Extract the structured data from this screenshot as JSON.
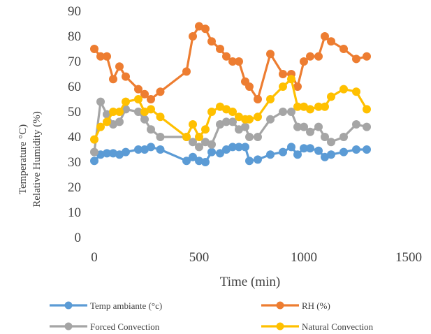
{
  "chart_data": {
    "type": "line",
    "xlabel": "Time (min)",
    "ylabel_lines": [
      "Temperature °C)",
      "Relative Humidity (%)"
    ],
    "xlim": [
      0,
      1500
    ],
    "ylim": [
      0,
      90
    ],
    "x_ticks": [
      0,
      500,
      1000,
      1500
    ],
    "y_ticks": [
      0,
      10,
      20,
      30,
      40,
      50,
      60,
      70,
      80,
      90
    ],
    "grid": false,
    "legend_position": "bottom",
    "series": [
      {
        "name": "Temp ambiante (°c)",
        "color": "#5B9BD5",
        "x": [
          0,
          30,
          60,
          90,
          120,
          150,
          210,
          240,
          270,
          315,
          440,
          470,
          500,
          530,
          560,
          600,
          630,
          660,
          690,
          720,
          740,
          780,
          840,
          900,
          940,
          970,
          1000,
          1030,
          1070,
          1100,
          1130,
          1190,
          1250,
          1300
        ],
        "y": [
          30.5,
          33,
          33.5,
          33.5,
          33,
          34,
          35,
          35,
          36,
          35,
          30.5,
          32,
          30.5,
          30,
          34,
          33.5,
          35,
          36,
          36,
          36,
          30.5,
          31,
          33,
          34,
          36,
          33,
          35.5,
          35.5,
          34.5,
          32,
          33,
          34,
          35,
          35
        ]
      },
      {
        "name": "RH (%)",
        "color": "#ED7D31",
        "x": [
          0,
          30,
          60,
          90,
          120,
          150,
          210,
          240,
          270,
          315,
          440,
          470,
          500,
          530,
          560,
          600,
          630,
          660,
          690,
          720,
          740,
          780,
          840,
          900,
          940,
          970,
          1000,
          1030,
          1070,
          1100,
          1130,
          1190,
          1250,
          1300
        ],
        "y": [
          75,
          72,
          72,
          63,
          68,
          64,
          59,
          57,
          55,
          58,
          66,
          80,
          84,
          83,
          78,
          75,
          72,
          70,
          70,
          62,
          60,
          55,
          73,
          65,
          65,
          60,
          70,
          72,
          72,
          80,
          78,
          75,
          71,
          72
        ]
      },
      {
        "name": "Forced Convection",
        "color": "#A5A5A5",
        "x": [
          0,
          30,
          60,
          90,
          120,
          150,
          210,
          240,
          270,
          315,
          440,
          470,
          500,
          530,
          560,
          600,
          630,
          660,
          690,
          720,
          740,
          780,
          840,
          900,
          940,
          970,
          1000,
          1030,
          1070,
          1100,
          1130,
          1190,
          1250,
          1300
        ],
        "y": [
          34,
          54,
          49,
          45,
          46,
          51,
          50,
          47,
          43,
          40,
          40,
          38,
          36,
          38,
          37,
          45,
          46,
          46,
          43,
          44,
          40,
          40,
          47,
          50,
          50,
          44,
          44,
          42,
          44,
          40,
          38,
          40,
          45,
          44
        ]
      },
      {
        "name": "Natural Convection",
        "color": "#FFC000",
        "x": [
          0,
          30,
          60,
          90,
          120,
          150,
          210,
          240,
          270,
          315,
          440,
          470,
          500,
          530,
          560,
          600,
          630,
          660,
          690,
          720,
          740,
          780,
          840,
          900,
          940,
          970,
          1000,
          1030,
          1070,
          1100,
          1130,
          1190,
          1250,
          1300
        ],
        "y": [
          39,
          44,
          46,
          50,
          50,
          54,
          55,
          50,
          51,
          48,
          40,
          45,
          40,
          43,
          50,
          52,
          51,
          50,
          48,
          47,
          47,
          48,
          55,
          60,
          63,
          52,
          52,
          51,
          52,
          52,
          56,
          59,
          58,
          51
        ]
      }
    ]
  }
}
